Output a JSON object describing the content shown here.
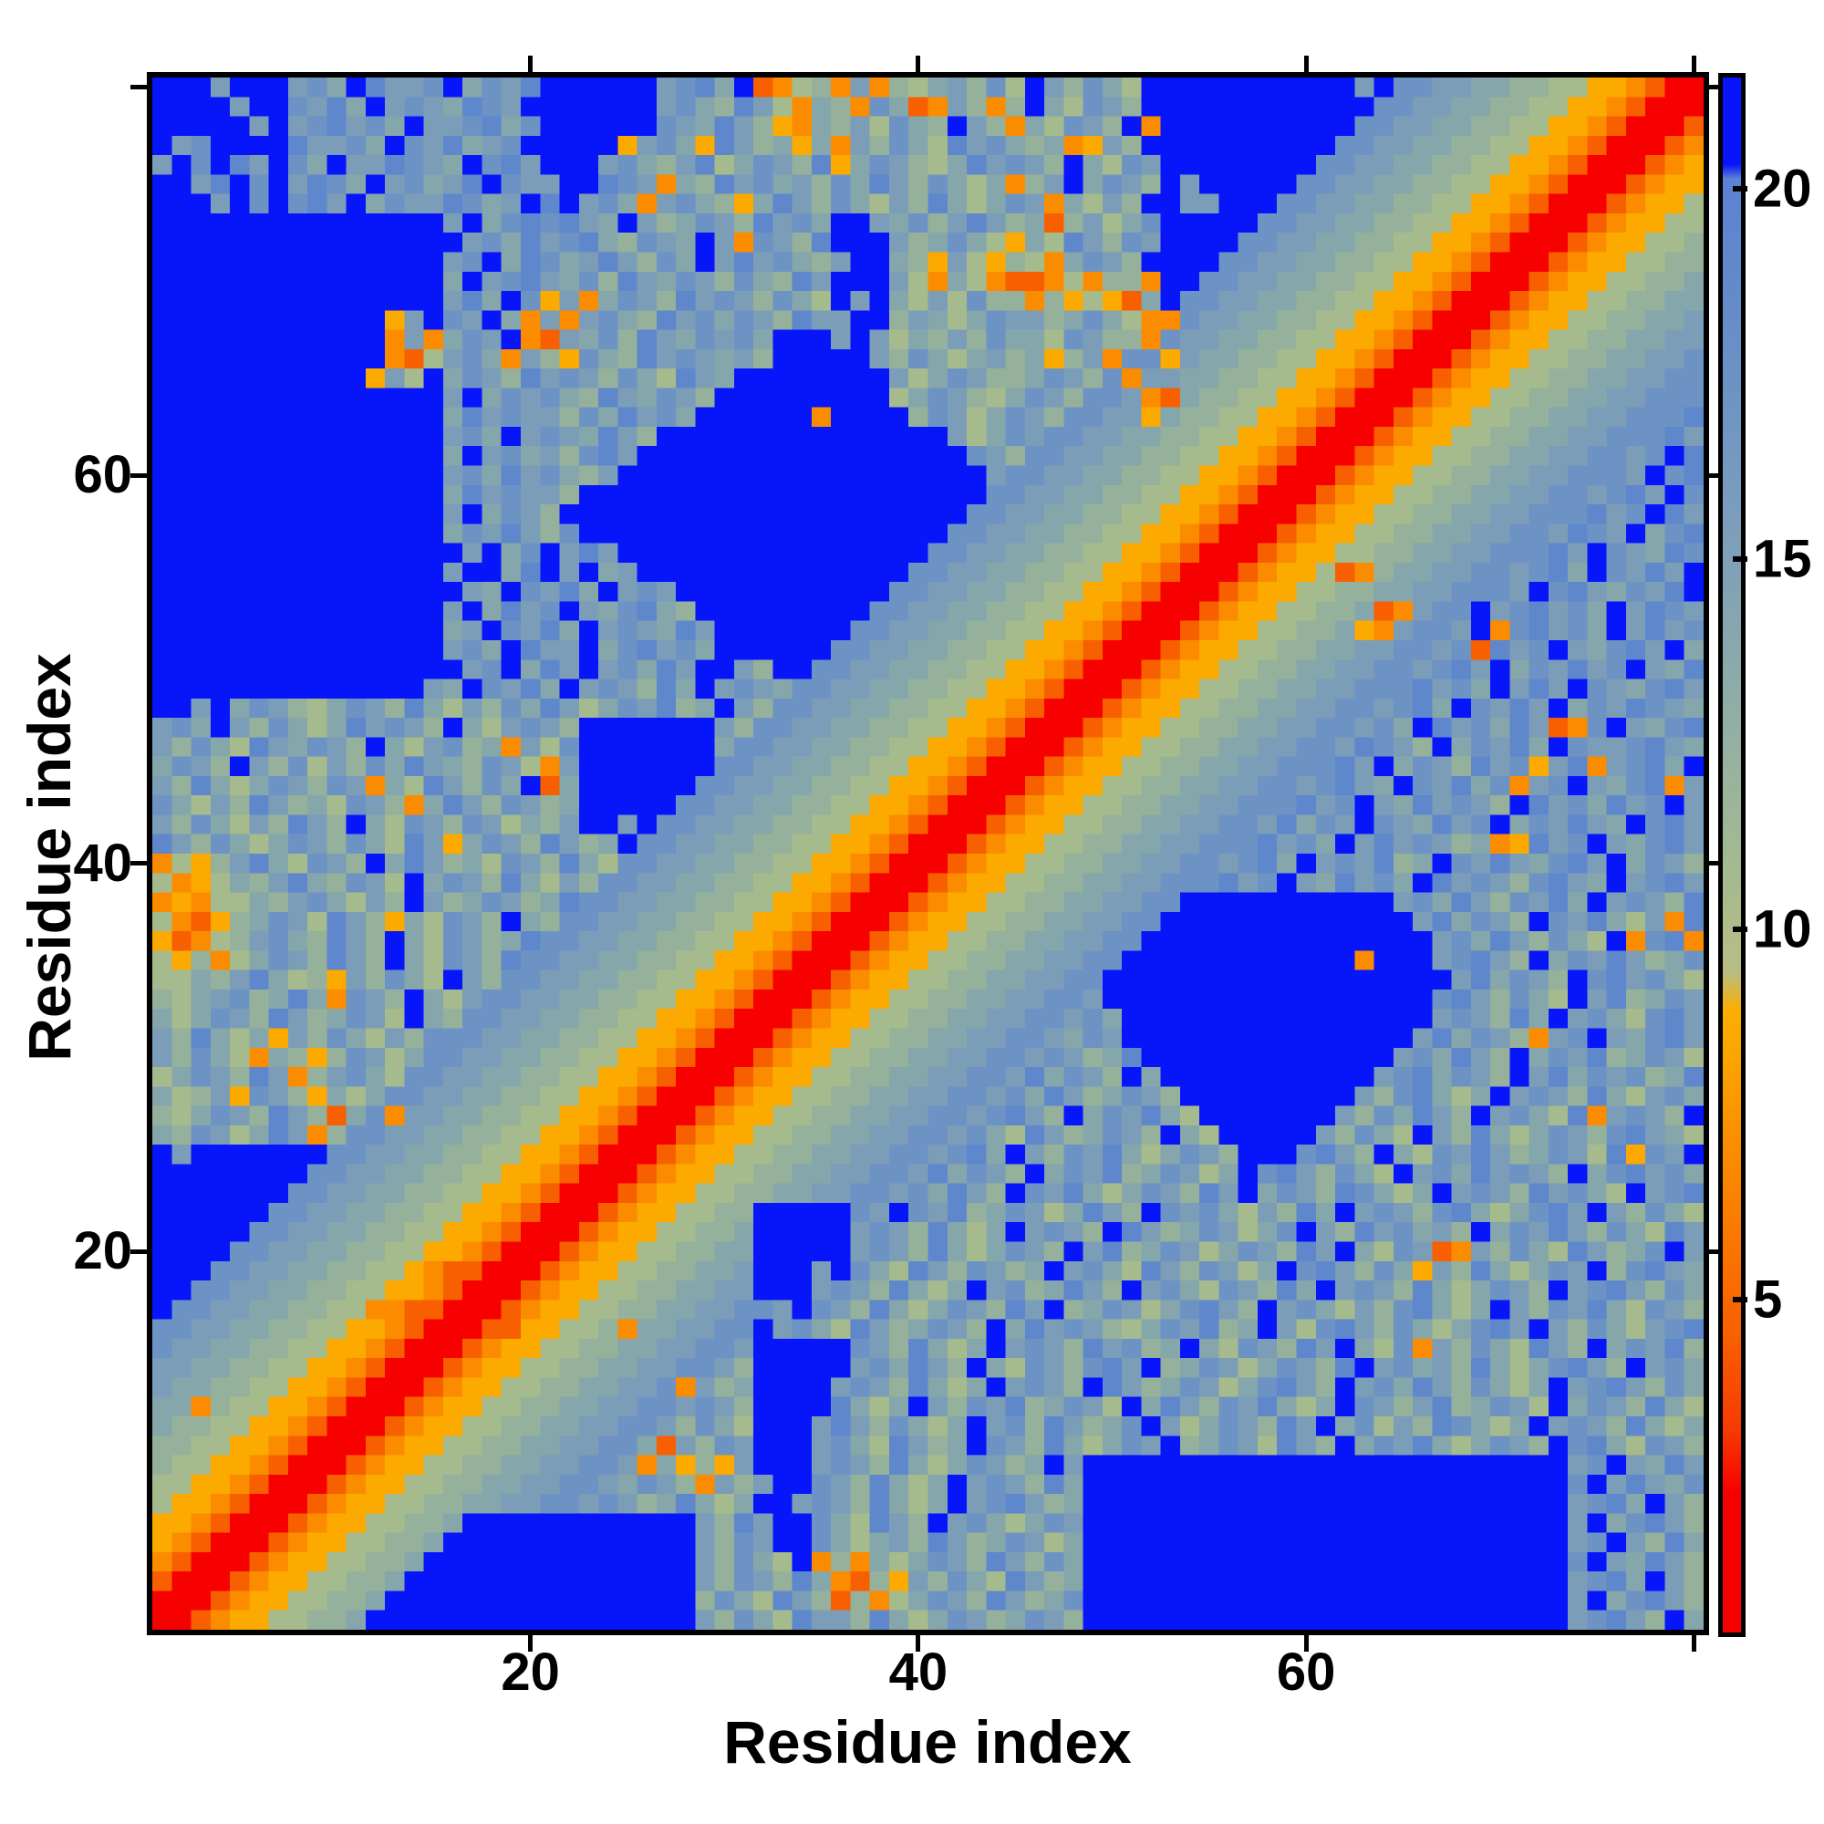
{
  "axes": {
    "x_label": "Residue index",
    "y_label": "Residue index",
    "x_tick_labels": [
      "20",
      "40",
      "60"
    ],
    "y_tick_labels": [
      "20",
      "40",
      "60"
    ],
    "tick_values": [
      20,
      40,
      60
    ],
    "tick_marks": [
      20,
      40,
      60,
      80
    ],
    "range": [
      0.5,
      80.5
    ]
  },
  "colorbar": {
    "tick_labels": [
      "5",
      "10",
      "15",
      "20"
    ],
    "tick_values": [
      5,
      10,
      15,
      20
    ],
    "domain": [
      0.5,
      21.5
    ]
  },
  "colors": {
    "frame": "#000000",
    "background": "#ffffff",
    "deep_blue_clip": "#0715fb",
    "diagonal_red": "#f70000"
  },
  "chart_data": {
    "type": "heatmap",
    "title": "",
    "xlabel": "Residue index",
    "ylabel": "Residue index",
    "size": 80,
    "row_order": "top-to-bottom = residue 80 down to residue 1; columns left-to-right = residue 1 to 80",
    "value_unit": "distance (colorbar scale ~0.5-21.5, values above ~20.5 clipped to deep blue)",
    "level_values": {
      "0": 2,
      "1": 4,
      "2": 5.5,
      "3": 7,
      "4": 8.5,
      "5": 9.5,
      "6": 10.5,
      "7": 12,
      "8": 13.5,
      "9": 15.5,
      "a": 17.5,
      "b": 19,
      "c": 20,
      "d": 20.5,
      "e": 21,
      "f": 22
    },
    "palette": {
      "0": "#f70000",
      "1": "#f63a00",
      "2": "#f85f00",
      "3": "#fb8c00",
      "4": "#fcaa00",
      "5": "#c9bc6a",
      "6": "#a6bb8d",
      "7": "#95b19b",
      "8": "#85a6ab",
      "9": "#7b9db8",
      "a": "#6d93c4",
      "b": "#5f87cb",
      "c": "#3f66dd",
      "d": "#2647ec",
      "e": "#1030f7",
      "f": "#0715fb"
    },
    "rows": [
      "fff9fff9a8fb99af8a9bffffff9ab8f236739376897a6f97a86fffffffffff9faa99887766443200",
      "ffff9ffa9b8f9a98ba9fffffff9a87b963873a8239737f86a97ffffffffffffaa998877664432000",
      "fffff9f9ab9a8f99ab8affffffa98b97438796a87f97386a97f3ffffffffffaa9988776644320002",
      "f9affffb99a8fa9b89afffff49a84b97848397a86b9a8783497ffffffffffaa99887766443200023",
      "9fafb9fa8f99ba98fab9fff9a879b68a97b48a9768b9a97f86a9ffffffffaa998877664432000234",
      "ff9bfaf9ba8f9a89bfa99ffba9387b9a897a8b97a868379f8a97f9fffffaa9988776644320002344",
      "fff9fafab9f8a99ba89fbf9a839a8748b97a8697b868a938697ff99fffaa99887766443200023446",
      "fffffffffffffff9f8abab98f978a97b9a8ff98a79b97827968afffffaa998877664432000234466",
      "ffffffffffffffff9a8b9ab87a98f93a97bfff978a86486b97a9ffffaa9988776644320002344667",
      "fffffffffffffff9af8ba89b97a8f9b9a879ff8749647638a97ffffaa99887766443200023446677",
      "fffffffffffffff8f9ab98a7b98a97a87b9fff96386322363773ffaa998877664432000234466778",
      "fffffffffffffff9b8fa4938a97b9a97a86f9f8696a773746428faa9988776644320002344667788",
      "ffffffffffff49fa9f83939a87b9a8a97b99ff79868a9978a8633a99887766443200023446677889",
      "ffffffffffff3938a9f3298a7b98a9a8fff9f968797a886a9773a998877664432000234466778899",
      "ffffffffffff3269a83974a87b9a9897fffff97a8689784793aa498877664432000234466778899a",
      "fffffffffff496f8a97b9a97a86b98ffffffff968a9778a97a3998877664432000234466778899aa",
      "fffffffffffffff9f8a9a87b98a97fffffffff68a9768a97aa932877664432000234466778899aaa",
      "fffffffffffffff8b9a997a8b9a8ffffff3ffff7a968a97aa994877664432000234466778899aaab",
      "fffffffffffffff9a8f9a98b97fffffffffffffff968a9aa998877664432000234466778899aaab9",
      "fffffffffffffff8f9a897ab9fffffffffffffffffa97aa998877664432000234466778899aa9afb",
      "fffffffffffffff9a8b9a879fffffffffffffffffff9aa998877664432000234466778899aaa9fab",
      "fffffffffffffff8b9a997fffffffffffffffffffffaa998877664432000234466778899aa9ab9fa",
      "fffffffffffffff9f8a97fffffffffffffffffffffaa998877664432000234466778899aaab9afb9",
      "fffffffffffffff8a9b97afffffffffffffffffffaa998877664432000234466778899aa9ba9f8ab",
      "ffffffffffffffff9f8af9b9ffffffffffffffffaa998877664432000234466778899aaab9fa98ba",
      "fffffffffffffff9ff8bf9f89ffffffffffffffaa998877664432000234462378899aa9ab8fa9b9f",
      "ffffffffffffffff98fa9b8f9a9fffffffffffaa998877664432000234466778899aaa9fab98a9bf",
      "fffffffffffffff9f8b9af98ab87fffffffffaa998877664432000234466778239aaf9ab9a8f9ba9",
      "fffffffffffffff89fa9b8f9a98b9fffffffaa998877664432000234466778439aa9f3ab9a8f9b9a",
      "fffffffffffffff9a8fb99f8ab9a8ffffffaa998877664432000234466778899aa9a2b9af98ab9f8",
      "ffffffffffffffff9af8b9f9a8b9ff97ffaa998877664432000234466778899aa9ab9f8a9b9af98b",
      "ffffffffffffff98fa9b8f9a97b8f9a98aa998877664432000234466778899aaab9a8f9b9fa98ab9",
      "ff9f8a9768a97b8697a8b968a9b78f97aa998877664432000234466778899aa9ab8fa9b9f8a9ba98",
      "9a8f97a868b9a97f869a97fffffff97aa998877664432000234466778899aa9a8fb9a8b923af98ab",
      "97a86b98a97f869a78396afffffff8aa998877664432000234466778899aa9ba97f8a9b8fa99ab98",
      "8a97f97a697a8b987a9639fffffffaa998877664432000234466778899aaab9f8a97b9a49b39ab8f",
      "97b868a97a9386b97a8f28ffffffaa998877664432000234466778899aa9ab98fa9b8a39af98ab39",
      "a8697b9786a9738b97a978fffffaa998877664432000234466778899aaab9af98b9a97fb9a8b9af9",
      "97a8697b97f86a97a96879ff9faa998877664432000234466778899aa9b8a9fa98b9af8a9b98fab9",
      "b97a868a97a86b948a97b978faa998877664432000234466778899aaab9a8f9b9a97834b9af98ab9",
      "36479b86a97f8b9786a97b86aa998877664432000234466778899aa9ab8f9a9b78fa9b98ab9f8a97",
      "6346879b87a96f8a97b8697aa998877664432000234466778899aaab9af98b9a8fb9a97ab98f9ab9",
      "34366879a8697f978a978baa998877664432000234466778899aafffffffffff9a8b97a9b8f9a97b",
      "632478a96b97486a97f87aa998877664432000234466778899aafffffffffffff9b8a97fa9b8693b",
      "423679a87b97f86a978baa998877664432000234466778899aafffffffffffffff9a8b97a86f3ab3",
      "647368a97b97f86a97baa998877664432000234466778899aaffffffffffff3fff9ab97f8a9b978a",
      "66879b867497a86f97aa998877664432000234466778899aaffffffffffffffffff9b8a97fab9a86",
      "7689a78b83a97f869aa998877664432000234466778899aa9fffffffffffffffffab97a86f9b78a9",
      "868a97b978a96f87aa998877664432000234466778899aa9a8ffffffffffffffff9a97b8f9a86ab9",
      "97b868497a8697aaa998877664432000234466778899aa98a9fffffffffffffff9b8a9739af98ab9",
      "97a8638747a968aa998877664432000234466778899aa9a978bfffffffffffff9a8b97f8a9b78a96",
      "68a97b9379a86aa998877664432000234466778899aa9b8a97f8fffffffffff9ab8a97f9b8a9a78b",
      "86794a974868aa998877664432000234466778899aa9a8b978a97fffffffff97ab868f9a97b869a8",
      "768a97b9728a3998877664432000234466778899aa9ab97f8a9b86fffffff97a8b97f9a86b39a97f",
      "87a968b937aa998877664432000234466778899aa9a86b978a97f86fffff97a86f97b868a97ab986",
      "f9fffffffaa998877664432000234466778899aa9ab8f97a9b868a97fffab97f86a9b978a96b4a9f",
      "ffffffffaa998877664432000234466778899aa9b8a97f8a9b78a968fab97a86f9a8b9a97f8ab9a8",
      "fffffffaa998877664432000234466778899aa9a8b97fa9b868a97b9f8a97ba868f9a97b9a86f9ab",
      "ffffffaa99887766443200023446677fffffa9fa9b78a968b97fa9a8697b8f9a97ab868ab9f97a86",
      "fffffaa998877664432000234466778fffff9a97b868f9a97fb978a968af97b9a897f8a9b97a86b9",
      "ffffaa9988776644320002344667788fffff9a97b868a97f9b78a968a97b9f86a92397a86b978af9",
      "fffaa99887766432200023446677889fff9fa86b97a978f9a86b97a968fab97a8497b868a9f7ab98",
      "ffaa998877664432000234466778899fff9a97b868f9a78b97f9a86a97b8f9a97b868a97f9ab97a8",
      "faa998877663322000234466778899aa9fa97b868a97b9f78a968ab97f9a8697ab868f97a9b86a97",
      "aa998877664432000224466738899aaf9a86b978a97f8b9a9768a9b78f96ab97a868ab9f97a869ab",
      "a998877664432000234466778899aa9fffffa97b868f9a97b9a78f86a97b9f86a397a86b97f8a9b7",
      "998877664432000234466778899aa97fffff9a8b97f86a97ab9f78a968a97bf9a897b868ab97f9a8",
      "98877664432000234466778899a3978ffff9a97b868f9a97fb978a968ab97f9a8b97a868f9ab97a8",
      "8837664432000234466778899aa9a97ffffb868f97a9b78a96f8b97a9b868fa979b78a96f8a97b86",
      "877664432000234466778899aa97a86fff9b97a868f9a7b978af968a97b9f8a697ba868f9a97b868",
      "77664432000234466778899aa8297a9fff9a86b978fa97b868a9f78a96b97f8a9b868a97fab86a97",
      "7664432000234466778899aa9384749fff9a97b868a978f9fffffffffffffffffffffffff9af98b9",
      "664432000234466778899aa98a973979ffa97b868f9a97b8fffffffffffffffffffffffffaf9b98a",
      "64432000234466778899aa9a978b868ff9a97b868f9ab978fffffffffffffffffffffffff9ab8f97",
      "4432000234466778ffffffffffff97b9ffa86b97f9a868a9fffffffffffffffffffffffff9f8ab97",
      "432000234466778fffffffffffff97a9ffa86897b978a968fffffffffffffffffffffffff9af97b8",
      "32000234466778ffffffffffffff97a86f373868a97b97a8fffffffffffffffffffffffffaf98b97",
      "2000234466778fffffffffffffff97a97b8327497a86b978fffffffffffffffffffffffff9ab8f97",
      "000234466778ffffffffffffffff7a86b9727368a97b978afffffffffffffffffffffffff9f8ab97",
      "00234466778fffffffffffffffff97a86b997b868a978a97fffffffffffffffffffffffff9ab97f8"
    ]
  }
}
